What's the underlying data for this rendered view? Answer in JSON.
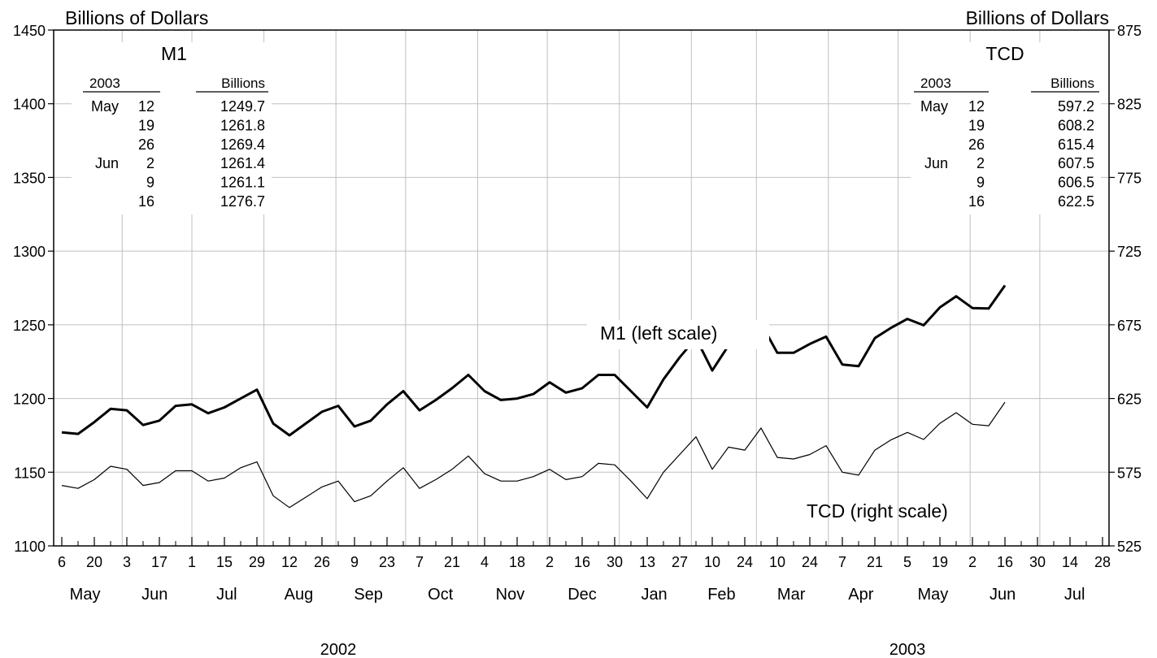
{
  "chart_data": {
    "type": "line",
    "title": "",
    "left_axis": {
      "label": "Billions of Dollars",
      "range": [
        1100,
        1450
      ],
      "ticks": [
        1100,
        1150,
        1200,
        1250,
        1300,
        1350,
        1400,
        1450
      ]
    },
    "right_axis": {
      "label": "Billions of Dollars",
      "range": [
        525,
        875
      ],
      "ticks": [
        525,
        575,
        625,
        675,
        725,
        775,
        825,
        875
      ]
    },
    "grid": true,
    "x_ticks": [
      {
        "day": "6",
        "date": "2002-05-06"
      },
      {
        "day": "20",
        "date": "2002-05-20"
      },
      {
        "day": "3",
        "date": "2002-06-03"
      },
      {
        "day": "17",
        "date": "2002-06-17"
      },
      {
        "day": "1",
        "date": "2002-07-01"
      },
      {
        "day": "15",
        "date": "2002-07-15"
      },
      {
        "day": "29",
        "date": "2002-07-29"
      },
      {
        "day": "12",
        "date": "2002-08-12"
      },
      {
        "day": "26",
        "date": "2002-08-26"
      },
      {
        "day": "9",
        "date": "2002-09-09"
      },
      {
        "day": "23",
        "date": "2002-09-23"
      },
      {
        "day": "7",
        "date": "2002-10-07"
      },
      {
        "day": "21",
        "date": "2002-10-21"
      },
      {
        "day": "4",
        "date": "2002-11-04"
      },
      {
        "day": "18",
        "date": "2002-11-18"
      },
      {
        "day": "2",
        "date": "2002-12-02"
      },
      {
        "day": "16",
        "date": "2002-12-16"
      },
      {
        "day": "30",
        "date": "2002-12-30"
      },
      {
        "day": "13",
        "date": "2003-01-13"
      },
      {
        "day": "27",
        "date": "2003-01-27"
      },
      {
        "day": "10",
        "date": "2003-02-10"
      },
      {
        "day": "24",
        "date": "2003-02-24"
      },
      {
        "day": "10",
        "date": "2003-03-10"
      },
      {
        "day": "24",
        "date": "2003-03-24"
      },
      {
        "day": "7",
        "date": "2003-04-07"
      },
      {
        "day": "21",
        "date": "2003-04-21"
      },
      {
        "day": "5",
        "date": "2003-05-05"
      },
      {
        "day": "19",
        "date": "2003-05-19"
      },
      {
        "day": "2",
        "date": "2003-06-02"
      },
      {
        "day": "16",
        "date": "2003-06-16"
      },
      {
        "day": "30",
        "date": "2003-06-30"
      },
      {
        "day": "14",
        "date": "2003-07-14"
      },
      {
        "day": "28",
        "date": "2003-07-28"
      }
    ],
    "months": [
      {
        "label": "May",
        "date": "2002-05-16"
      },
      {
        "label": "Jun",
        "date": "2002-06-15"
      },
      {
        "label": "Jul",
        "date": "2002-07-16"
      },
      {
        "label": "Aug",
        "date": "2002-08-16"
      },
      {
        "label": "Sep",
        "date": "2002-09-15"
      },
      {
        "label": "Oct",
        "date": "2002-10-16"
      },
      {
        "label": "Nov",
        "date": "2002-11-15"
      },
      {
        "label": "Dec",
        "date": "2002-12-16"
      },
      {
        "label": "Jan",
        "date": "2003-01-16"
      },
      {
        "label": "Feb",
        "date": "2003-02-14"
      },
      {
        "label": "Mar",
        "date": "2003-03-16"
      },
      {
        "label": "Apr",
        "date": "2003-04-15"
      },
      {
        "label": "May",
        "date": "2003-05-16"
      },
      {
        "label": "Jun",
        "date": "2003-06-15"
      },
      {
        "label": "Jul",
        "date": "2003-07-16"
      }
    ],
    "years": [
      {
        "label": "2002",
        "date": "2002-09-02"
      },
      {
        "label": "2003",
        "date": "2003-05-05"
      }
    ],
    "month_boundaries": [
      "2002-06-01",
      "2002-07-01",
      "2002-08-01",
      "2002-09-01",
      "2002-10-01",
      "2002-11-01",
      "2002-12-01",
      "2003-01-01",
      "2003-02-01",
      "2003-03-01",
      "2003-04-01",
      "2003-05-01",
      "2003-06-01",
      "2003-07-01"
    ],
    "series": [
      {
        "name": "M1 (left scale)",
        "axis": "left",
        "x_start": "2002-05-06",
        "x_step_days": 7,
        "values": [
          1177,
          1176,
          1184,
          1193,
          1192,
          1182,
          1185,
          1195,
          1196,
          1190,
          1194,
          1200,
          1206,
          1183,
          1175,
          1183,
          1191,
          1195,
          1181,
          1185,
          1196,
          1205,
          1192,
          1199,
          1207,
          1216,
          1205,
          1199,
          1200,
          1203,
          1211,
          1204,
          1207,
          1216,
          1216,
          1205,
          1194,
          1213,
          1228,
          1241,
          1219,
          1236,
          1235,
          1251,
          1231,
          1231,
          1237,
          1242,
          1223,
          1222,
          1241,
          1248,
          1254,
          1249.7,
          1261.8,
          1269.4,
          1261.4,
          1261.1,
          1276.7
        ]
      },
      {
        "name": "TCD (right scale)",
        "axis": "right",
        "x_start": "2002-05-06",
        "x_step_days": 7,
        "values": [
          566,
          564,
          570,
          579,
          577,
          566,
          568,
          576,
          576,
          569,
          571,
          578,
          582,
          559,
          551,
          558,
          565,
          569,
          555,
          559,
          569,
          578,
          564,
          570,
          577,
          586,
          574,
          569,
          569,
          572,
          577,
          570,
          572,
          581,
          580,
          569,
          557,
          575,
          587,
          599,
          577,
          592,
          590,
          605,
          585,
          584,
          587,
          593,
          575,
          573,
          590,
          597,
          602,
          597.2,
          608.2,
          615.4,
          607.5,
          606.5,
          622.5
        ]
      }
    ],
    "annotations": [
      {
        "text": "M1 (left scale)",
        "series": "M1 (left scale)"
      },
      {
        "text": "TCD (right scale)",
        "series": "TCD (right scale)"
      }
    ]
  },
  "tables": {
    "m1": {
      "title": "M1",
      "header_left": "2003",
      "header_right": "Billions",
      "rows": [
        {
          "month": "May",
          "day": "12",
          "value": "1249.7"
        },
        {
          "month": "",
          "day": "19",
          "value": "1261.8"
        },
        {
          "month": "",
          "day": "26",
          "value": "1269.4"
        },
        {
          "month": "Jun",
          "day": "2",
          "value": "1261.4"
        },
        {
          "month": "",
          "day": "9",
          "value": "1261.1"
        },
        {
          "month": "",
          "day": "16",
          "value": "1276.7"
        }
      ]
    },
    "tcd": {
      "title": "TCD",
      "header_left": "2003",
      "header_right": "Billions",
      "rows": [
        {
          "month": "May",
          "day": "12",
          "value": "597.2"
        },
        {
          "month": "",
          "day": "19",
          "value": "608.2"
        },
        {
          "month": "",
          "day": "26",
          "value": "615.4"
        },
        {
          "month": "Jun",
          "day": "2",
          "value": "607.5"
        },
        {
          "month": "",
          "day": "9",
          "value": "606.5"
        },
        {
          "month": "",
          "day": "16",
          "value": "622.5"
        }
      ]
    }
  },
  "colors": {
    "line": "#000000",
    "grid": "#c0c0c0",
    "background": "#ffffff"
  }
}
